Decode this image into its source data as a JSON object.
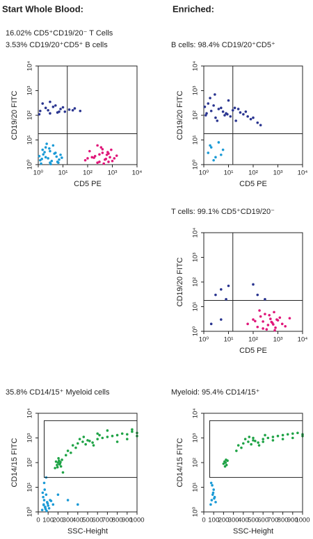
{
  "column_titles": [
    "Start Whole Blood:",
    "Enriched:"
  ],
  "chart_data": [
    {
      "type": "scatter",
      "subtitle": [
        "16.02% CD5⁺CD19/20⁻ T Cells",
        "3.53% CD19/20⁺CD5⁺ B cells"
      ],
      "xlabel": "CD5 PE",
      "ylabel": "CD19/20 FITC",
      "xscale": "log",
      "yscale": "log",
      "xlim": [
        1,
        10000
      ],
      "ylim": [
        1,
        10000
      ],
      "xticks": [
        {
          "value": 1,
          "label": "10⁰"
        },
        {
          "value": 10,
          "label": "10¹"
        },
        {
          "value": 100,
          "label": "10²"
        },
        {
          "value": 1000,
          "label": "10³"
        },
        {
          "value": 10000,
          "label": "10⁴"
        }
      ],
      "yticks": [
        {
          "value": 1,
          "label": "10⁰"
        },
        {
          "value": 10,
          "label": "10¹"
        },
        {
          "value": 100,
          "label": "10²"
        },
        {
          "value": 1000,
          "label": "10³"
        },
        {
          "value": 10000,
          "label": "10⁴"
        }
      ],
      "quadrant": {
        "x": 15,
        "y": 18
      },
      "series": [
        {
          "color": "#1a9ad6",
          "x": [
            1.2,
            2,
            3,
            5,
            8,
            1.5,
            2.5,
            4,
            6,
            1.1,
            3,
            7,
            2,
            1.3,
            4.5,
            9,
            2.2,
            3.5,
            1.8,
            5.5,
            1.4,
            2.8,
            6.5,
            1.6,
            3.2
          ],
          "values": [
            1.5,
            2,
            1.2,
            3,
            2.5,
            4,
            1.8,
            6,
            1.3,
            2.2,
            3.5,
            1.6,
            5,
            1.1,
            2.8,
            1.9,
            7,
            1.4,
            3.2,
            2.1,
            1.7,
            4.5,
            1.2,
            2.6,
            1.05
          ]
        },
        {
          "color": "#2a3590",
          "x": [
            1.2,
            2,
            3,
            5,
            8,
            12,
            1.5,
            2.5,
            4,
            6,
            18,
            30,
            50,
            1.1,
            3,
            7,
            10,
            25
          ],
          "values": [
            150,
            200,
            120,
            250,
            180,
            140,
            300,
            160,
            220,
            130,
            170,
            190,
            150,
            110,
            350,
            140,
            210,
            160
          ]
        },
        {
          "color": "#e0177a",
          "x": [
            80,
            150,
            250,
            400,
            600,
            900,
            1200,
            200,
            300,
            500,
            700,
            1000,
            120,
            350,
            450,
            800,
            250,
            550,
            650,
            1500,
            180,
            400,
            300,
            700,
            100
          ],
          "values": [
            1.5,
            2,
            1.2,
            3,
            2.5,
            4,
            1.8,
            2.2,
            1.3,
            1.6,
            2.8,
            1.4,
            3.5,
            5,
            1.1,
            2,
            6,
            1.7,
            3.2,
            2.3,
            1.9,
            4.2,
            2.6,
            1.3,
            1.8
          ]
        }
      ]
    },
    {
      "type": "scatter",
      "subtitle": [
        "B cells: 98.4% CD19/20⁺CD5⁺"
      ],
      "xlabel": "CD5 PE",
      "ylabel": "CD19/20 FITC",
      "xscale": "log",
      "yscale": "log",
      "xlim": [
        1,
        10000
      ],
      "ylim": [
        1,
        10000
      ],
      "xticks": [
        {
          "value": 1,
          "label": "10⁰"
        },
        {
          "value": 10,
          "label": "10¹"
        },
        {
          "value": 100,
          "label": "10²"
        },
        {
          "value": 1000,
          "label": "10³"
        },
        {
          "value": 10000,
          "label": "10⁴"
        }
      ],
      "yticks": [
        {
          "value": 1,
          "label": "10⁰"
        },
        {
          "value": 10,
          "label": "10¹"
        },
        {
          "value": 100,
          "label": "10²"
        },
        {
          "value": 1000,
          "label": "10³"
        },
        {
          "value": 10000,
          "label": "10⁴"
        }
      ],
      "quadrant": {
        "x": 15,
        "y": 18
      },
      "series": [
        {
          "color": "#2a3590",
          "x": [
            1.2,
            2,
            3,
            5,
            8,
            12,
            20,
            40,
            80,
            150,
            1.5,
            2.5,
            4,
            6,
            10,
            15,
            30,
            60,
            100,
            1.1,
            1.8,
            3.5,
            7,
            25,
            50,
            200,
            1.3,
            2.8,
            9,
            18
          ],
          "values": [
            100,
            150,
            80,
            200,
            120,
            90,
            60,
            110,
            70,
            50,
            300,
            250,
            180,
            140,
            400,
            160,
            130,
            90,
            80,
            220,
            500,
            60,
            100,
            180,
            140,
            40,
            120,
            700,
            110,
            200
          ]
        },
        {
          "color": "#1a9ad6",
          "x": [
            1.5,
            2,
            3,
            4,
            6,
            2.5,
            1.8,
            5
          ],
          "values": [
            3,
            5,
            2,
            8,
            4,
            1.5,
            6,
            2.5
          ]
        }
      ]
    },
    {
      "type": "scatter",
      "subtitle": [
        "T cells: 99.1% CD5⁺CD19/20⁻"
      ],
      "xlabel": "CD5 PE",
      "ylabel": "CD19/20 FITC",
      "xscale": "log",
      "yscale": "log",
      "xlim": [
        1,
        10000
      ],
      "ylim": [
        1,
        10000
      ],
      "xticks": [
        {
          "value": 1,
          "label": "10⁰"
        },
        {
          "value": 10,
          "label": "10¹"
        },
        {
          "value": 100,
          "label": "10²"
        },
        {
          "value": 1000,
          "label": "10³"
        },
        {
          "value": 10000,
          "label": "10⁴"
        }
      ],
      "yticks": [
        {
          "value": 1,
          "label": "10⁰"
        },
        {
          "value": 10,
          "label": "10¹"
        },
        {
          "value": 100,
          "label": "10²"
        },
        {
          "value": 1000,
          "label": "10³"
        },
        {
          "value": 10000,
          "label": "10⁴"
        }
      ],
      "quadrant": {
        "x": 15,
        "y": 18
      },
      "series": [
        {
          "color": "#e0177a",
          "x": [
            60,
            100,
            150,
            200,
            250,
            300,
            400,
            500,
            600,
            700,
            800,
            1000,
            1200,
            1500,
            2000,
            180,
            350,
            450,
            550,
            900,
            250,
            650,
            120,
            750,
            3000
          ],
          "values": [
            2,
            3,
            1.5,
            4,
            2.5,
            5,
            1.8,
            3.2,
            2.2,
            6,
            1.4,
            2.8,
            3.6,
            2,
            1.6,
            7,
            1.2,
            4.5,
            2.4,
            3,
            1.3,
            1.9,
            2.6,
            1.1,
            3.4
          ]
        },
        {
          "color": "#2a3590",
          "x": [
            3,
            5,
            8,
            10,
            100,
            150,
            5,
            300,
            2
          ],
          "values": [
            30,
            50,
            20,
            70,
            80,
            30,
            3,
            20,
            2
          ]
        }
      ]
    },
    {
      "type": "scatter",
      "subtitle": [
        "35.8% CD14/15⁺ Myeloid cells"
      ],
      "xlabel": "SSC-Height",
      "ylabel": "CD14/15 FITC",
      "xscale": "linear",
      "yscale": "log",
      "xlim": [
        0,
        1000
      ],
      "ylim": [
        1,
        10000
      ],
      "xticks": [
        0,
        100,
        200,
        300,
        400,
        500,
        600,
        700,
        800,
        900,
        1000
      ],
      "yticks": [
        {
          "value": 1,
          "label": "10⁰"
        },
        {
          "value": 10,
          "label": "10¹"
        },
        {
          "value": 100,
          "label": "10²"
        },
        {
          "value": 1000,
          "label": "10³"
        },
        {
          "value": 10000,
          "label": "10⁴"
        }
      ],
      "gate": {
        "x": [
          60,
          1000
        ],
        "y": [
          25,
          5000
        ]
      },
      "series": [
        {
          "color": "#1a9ad6",
          "x": [
            40,
            55,
            60,
            70,
            80,
            90,
            100,
            65,
            75,
            50,
            85,
            120,
            150,
            45,
            95,
            60,
            70,
            110,
            80,
            130,
            55,
            200,
            300,
            400
          ],
          "values": [
            1.2,
            2,
            3,
            1.5,
            5,
            2.5,
            1.8,
            8,
            1.3,
            4,
            1.1,
            3,
            2,
            6,
            2.2,
            15,
            1.6,
            1.4,
            25,
            2.8,
            1.9,
            5,
            3,
            2
          ]
        },
        {
          "color": "#1fa346",
          "x": [
            170,
            190,
            200,
            210,
            220,
            230,
            180,
            240,
            205,
            215,
            195,
            225,
            250
          ],
          "values": [
            60,
            80,
            100,
            120,
            90,
            70,
            110,
            130,
            150,
            85,
            65,
            105,
            40
          ]
        },
        {
          "color": "#1fa346",
          "x": [
            300,
            350,
            400,
            450,
            500,
            550,
            600,
            650,
            700,
            750,
            800,
            850,
            900,
            950,
            1000,
            420,
            480,
            520,
            380,
            460,
            560,
            620,
            330,
            900,
            700,
            800,
            280,
            1000,
            950,
            600
          ],
          "values": [
            300,
            500,
            600,
            700,
            800,
            650,
            900,
            1000,
            1100,
            1200,
            1300,
            1500,
            1400,
            1800,
            1600,
            900,
            550,
            750,
            400,
            1100,
            500,
            1300,
            250,
            900,
            2000,
            700,
            200,
            1200,
            2200,
            1500
          ]
        }
      ]
    },
    {
      "type": "scatter",
      "subtitle": [
        "Myeloid: 95.4% CD14/15⁺"
      ],
      "xlabel": "SSC-Height",
      "ylabel": "CD14/15 FITC",
      "xscale": "linear",
      "yscale": "log",
      "xlim": [
        0,
        1000
      ],
      "ylim": [
        1,
        10000
      ],
      "xticks": [
        0,
        100,
        200,
        300,
        400,
        500,
        600,
        700,
        800,
        900,
        1000
      ],
      "yticks": [
        {
          "value": 1,
          "label": "10⁰"
        },
        {
          "value": 10,
          "label": "10¹"
        },
        {
          "value": 100,
          "label": "10²"
        },
        {
          "value": 1000,
          "label": "10³"
        },
        {
          "value": 10000,
          "label": "10⁴"
        }
      ],
      "gate": {
        "x": [
          60,
          1000
        ],
        "y": [
          25,
          5000
        ]
      },
      "series": [
        {
          "color": "#1a9ad6",
          "x": [
            70,
            80,
            90,
            100,
            110,
            85,
            95,
            120,
            75,
            105
          ],
          "values": [
            2,
            3,
            5,
            8,
            4,
            12,
            6,
            2.5,
            15,
            3.5
          ]
        },
        {
          "color": "#1fa346",
          "x": [
            200,
            210,
            220,
            230,
            240,
            215,
            225
          ],
          "values": [
            90,
            110,
            100,
            80,
            120,
            70,
            130
          ]
        },
        {
          "color": "#1fa346",
          "x": [
            350,
            400,
            450,
            500,
            550,
            600,
            650,
            700,
            750,
            800,
            850,
            900,
            950,
            1000,
            420,
            480,
            520,
            380,
            460,
            560,
            620,
            330,
            700,
            800,
            900,
            1000,
            600,
            500
          ],
          "values": [
            500,
            600,
            700,
            800,
            650,
            900,
            1000,
            1100,
            1200,
            1300,
            1400,
            1500,
            1600,
            1400,
            900,
            550,
            750,
            400,
            1100,
            500,
            1300,
            300,
            800,
            900,
            1000,
            1200,
            700,
            1000
          ]
        }
      ]
    }
  ]
}
